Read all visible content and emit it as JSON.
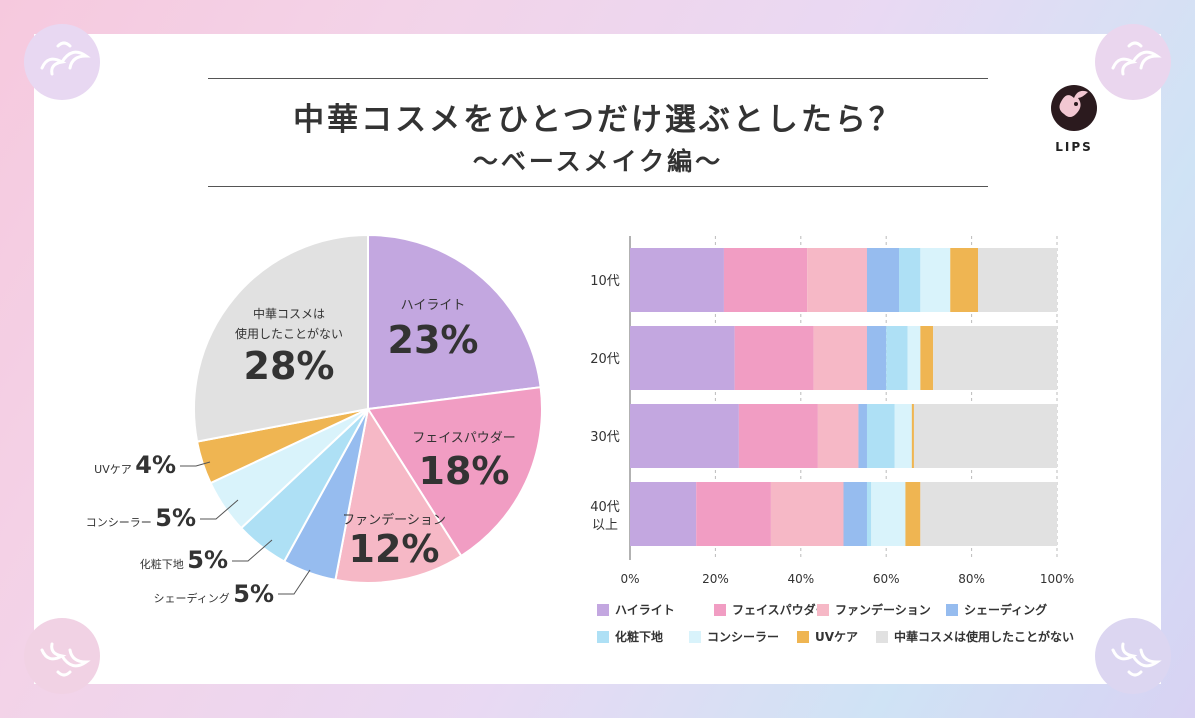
{
  "title": {
    "main": "中華コスメをひとつだけ選ぶとしたら？",
    "sub": "〜ベースメイク編〜"
  },
  "logo": {
    "text": "LIPS"
  },
  "colors": {
    "ハイライト": "#c3a7e0",
    "フェイスパウダー": "#f19dc3",
    "ファンデーション": "#f6b8c6",
    "シェーディング": "#96bcef",
    "化粧下地": "#aee0f5",
    "コンシーラー": "#d9f3fb",
    "UVケア": "#efb552",
    "中華コスメは使用したことがない": "#e1e1e1"
  },
  "chart_data": [
    {
      "type": "pie",
      "slices": [
        {
          "label": "ハイライト",
          "value": 23,
          "display": "23%"
        },
        {
          "label": "フェイスパウダー",
          "value": 18,
          "display": "18%"
        },
        {
          "label": "ファンデーション",
          "value": 12,
          "display": "12%"
        },
        {
          "label": "シェーディング",
          "value": 5,
          "display": "5%"
        },
        {
          "label": "化粧下地",
          "value": 5,
          "display": "5%"
        },
        {
          "label": "コンシーラー",
          "value": 5,
          "display": "5%"
        },
        {
          "label": "UVケア",
          "value": 4,
          "display": "4%"
        },
        {
          "label": "中華コスメは使用したことがない",
          "lines": [
            "中華コスメは",
            "使用したことがない"
          ],
          "value": 28,
          "display": "28%"
        }
      ]
    },
    {
      "type": "bar",
      "orientation": "horizontal",
      "stacked": true,
      "categories": [
        [
          "10代"
        ],
        [
          "20代"
        ],
        [
          "30代"
        ],
        [
          "40代",
          "以上"
        ]
      ],
      "series": [
        {
          "name": "ハイライト",
          "values": [
            22,
            24.5,
            25.5,
            15.5
          ]
        },
        {
          "name": "フェイスパウダー",
          "values": [
            19.5,
            18.5,
            18.5,
            17.5
          ]
        },
        {
          "name": "ファンデーション",
          "values": [
            14,
            12.5,
            9.5,
            17
          ]
        },
        {
          "name": "シェーディング",
          "values": [
            7.5,
            4.5,
            2,
            5.5
          ]
        },
        {
          "name": "化粧下地",
          "values": [
            5,
            5,
            6.5,
            1
          ]
        },
        {
          "name": "コンシーラー",
          "values": [
            7,
            3,
            4,
            8
          ]
        },
        {
          "name": "UVケア",
          "values": [
            6.5,
            3,
            0.5,
            3.5
          ]
        },
        {
          "name": "中華コスメは使用したことがない",
          "values": [
            18.5,
            29,
            33.5,
            32
          ]
        }
      ],
      "xlim": [
        0,
        100
      ],
      "xticks": [
        "0%",
        "20%",
        "40%",
        "60%",
        "80%",
        "100%"
      ],
      "xtick_values": [
        0,
        20,
        40,
        60,
        80,
        100
      ],
      "legend": [
        "ハイライト",
        "フェイスパウダー",
        "ファンデーション",
        "シェーディング",
        "化粧下地",
        "コンシーラー",
        "UVケア",
        "中華コスメは使用したことがない"
      ],
      "legend_position": "bottom"
    }
  ]
}
